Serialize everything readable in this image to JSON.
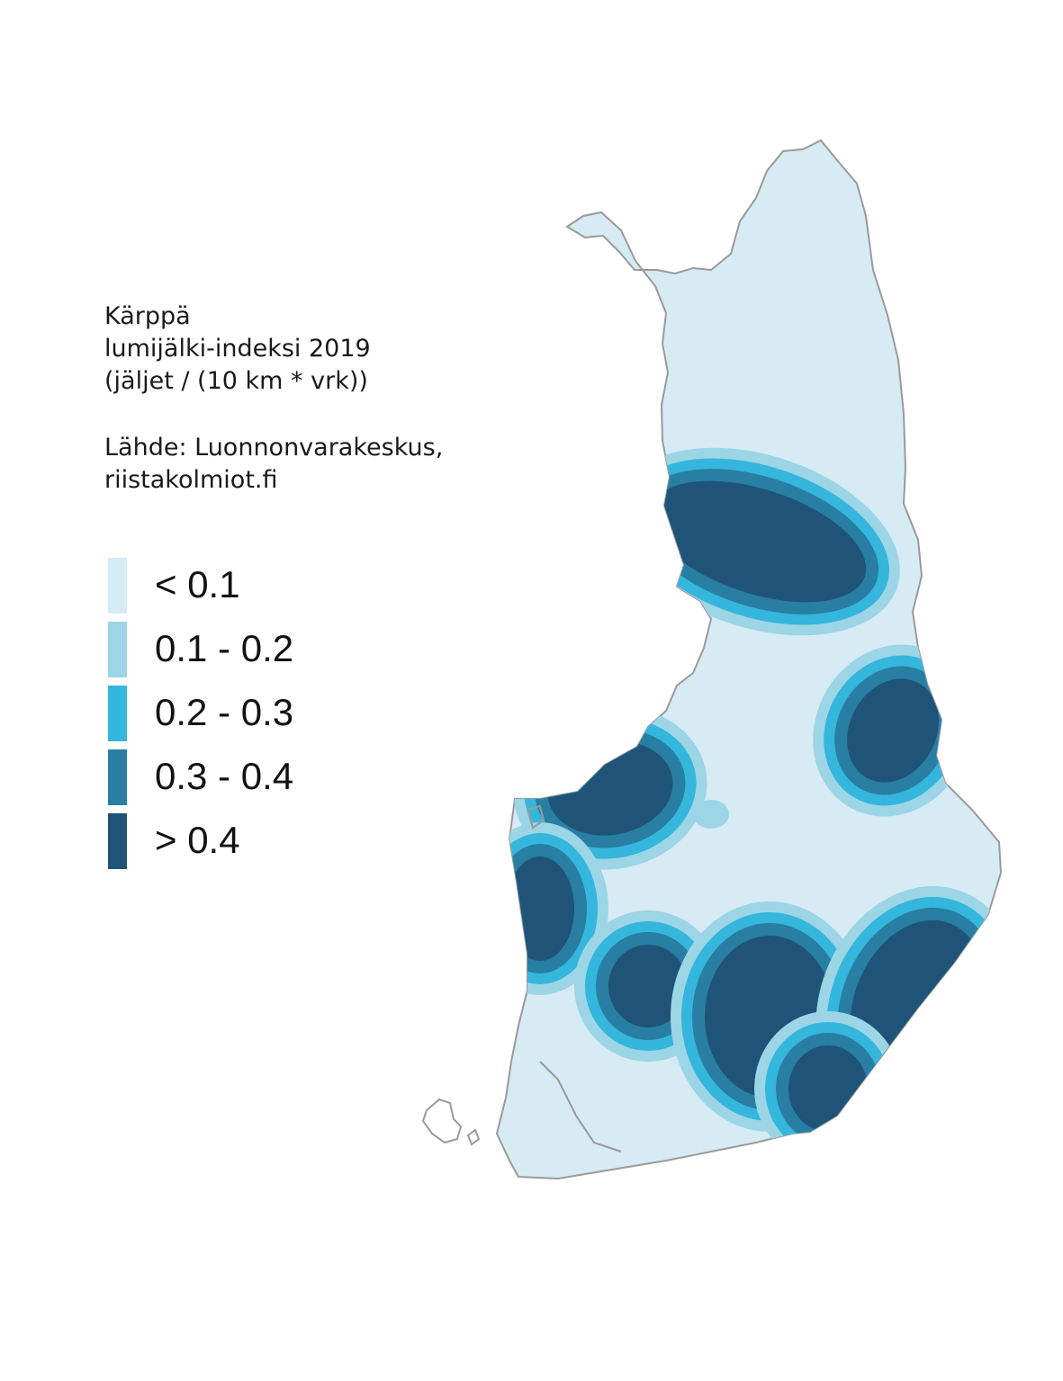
{
  "title": {
    "species": "Kärppä",
    "index_name": "lumijälki-indeksi 2019",
    "unit": "(jäljet / (10 km * vrk))",
    "source_line1": "Lähde: Luonnonvarakeskus,",
    "source_line2": "riistakolmiot.fi"
  },
  "legend": [
    {
      "label": "< 0.1",
      "color": "#d6ebf3"
    },
    {
      "label": "0.1 - 0.2",
      "color": "#9cd5e5"
    },
    {
      "label": "0.2 - 0.3",
      "color": "#35b6dc"
    },
    {
      "label": "0.3 - 0.4",
      "color": "#287ea3"
    },
    {
      "label": "> 0.4",
      "color": "#1f5478"
    }
  ],
  "map": {
    "region": "Finland",
    "coastline_color": "#9a9a9a"
  }
}
